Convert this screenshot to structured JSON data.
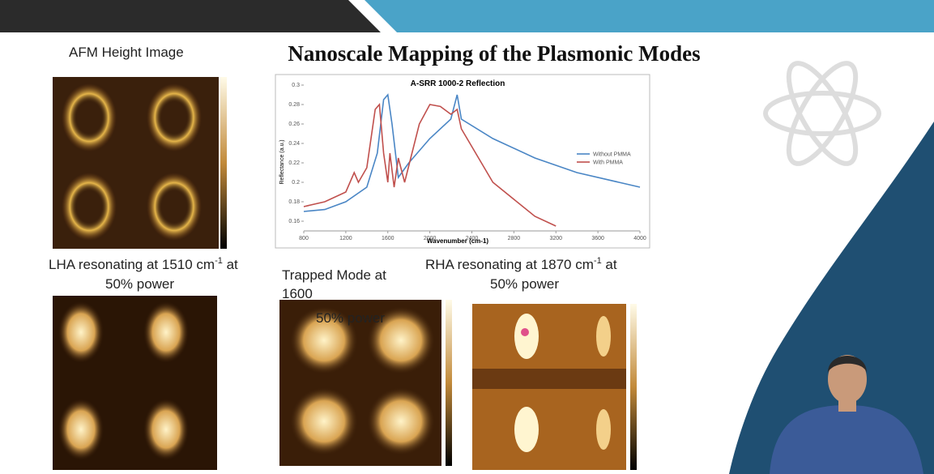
{
  "header": {
    "title": "Nanoscale Mapping of the Plasmonic Modes"
  },
  "afm_caption": "AFM Height Image",
  "lha_caption": {
    "text": "LHA resonating at 1510 cm",
    "sup": "-1",
    "tail": " at",
    "line2": "50% power"
  },
  "trapped_caption": {
    "line1": "Trapped Mode at",
    "line2": "1600",
    "line3": "50% power"
  },
  "rha_caption": {
    "text": "RHA resonating at 1870 cm",
    "sup": "-1",
    "tail": " at",
    "line2": "50% power"
  },
  "chart_data": {
    "type": "line",
    "title": "A-SRR 1000-2 Reflection",
    "x_label": "Wavenumber (cm-1)",
    "y_label": "Reflectance (a.u.)",
    "xlim": [
      800,
      4000
    ],
    "xticks": [
      800,
      1200,
      1600,
      2000,
      2400,
      2800,
      3200,
      3600,
      4000
    ],
    "ylim": [
      0.15,
      0.3
    ],
    "yticks": [
      0.16,
      0.18,
      0.2,
      0.22,
      0.24,
      0.26,
      0.28,
      0.3
    ],
    "series": [
      {
        "name": "Without PMMA",
        "color": "#4a86c5",
        "x": [
          800,
          1000,
          1200,
          1400,
          1500,
          1560,
          1600,
          1640,
          1700,
          1800,
          2000,
          2200,
          2260,
          2300,
          2600,
          3000,
          3400,
          3800,
          4000
        ],
        "values": [
          0.17,
          0.172,
          0.18,
          0.195,
          0.23,
          0.285,
          0.29,
          0.26,
          0.205,
          0.22,
          0.245,
          0.265,
          0.29,
          0.265,
          0.245,
          0.225,
          0.21,
          0.2,
          0.195
        ]
      },
      {
        "name": "With PMMA",
        "color": "#c0504d",
        "x": [
          800,
          1000,
          1200,
          1280,
          1320,
          1400,
          1480,
          1520,
          1560,
          1600,
          1620,
          1660,
          1700,
          1760,
          1900,
          2000,
          2100,
          2200,
          2260,
          2300,
          2600,
          3000,
          3200
        ],
        "values": [
          0.175,
          0.18,
          0.19,
          0.21,
          0.2,
          0.215,
          0.275,
          0.28,
          0.23,
          0.2,
          0.23,
          0.195,
          0.225,
          0.2,
          0.26,
          0.28,
          0.278,
          0.27,
          0.275,
          0.255,
          0.2,
          0.165,
          0.155
        ]
      }
    ]
  }
}
